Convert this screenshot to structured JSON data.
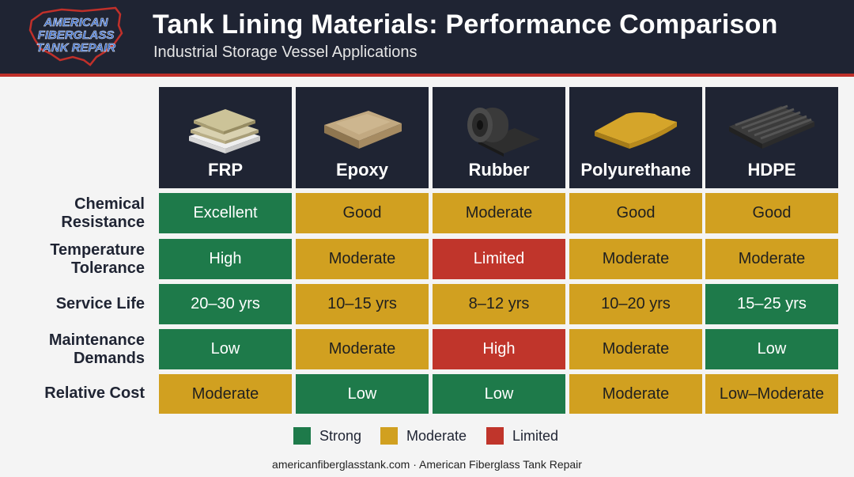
{
  "header": {
    "title": "Tank Lining Materials: Performance Comparison",
    "subtitle": "Industrial Storage Vessel Applications",
    "logo_lines": [
      "AMERICAN",
      "FIBERGLASS",
      "TANK REPAIR"
    ]
  },
  "columns": [
    {
      "name": "FRP",
      "icon": "frp-laminate-icon"
    },
    {
      "name": "Epoxy",
      "icon": "epoxy-sheet-icon"
    },
    {
      "name": "Rubber",
      "icon": "rubber-roll-icon"
    },
    {
      "name": "Polyurethane",
      "icon": "polyurethane-sheet-icon"
    },
    {
      "name": "HDPE",
      "icon": "hdpe-ribbed-sheet-icon"
    }
  ],
  "rows": [
    {
      "label": [
        "Chemical",
        "Resistance"
      ],
      "cells": [
        {
          "text": "Excellent",
          "rating": "strong"
        },
        {
          "text": "Good",
          "rating": "moderate"
        },
        {
          "text": "Moderate",
          "rating": "moderate"
        },
        {
          "text": "Good",
          "rating": "moderate"
        },
        {
          "text": "Good",
          "rating": "moderate"
        }
      ]
    },
    {
      "label": [
        "Temperature",
        "Tolerance"
      ],
      "cells": [
        {
          "text": "High",
          "rating": "strong"
        },
        {
          "text": "Moderate",
          "rating": "moderate"
        },
        {
          "text": "Limited",
          "rating": "limited"
        },
        {
          "text": "Moderate",
          "rating": "moderate"
        },
        {
          "text": "Moderate",
          "rating": "moderate"
        }
      ]
    },
    {
      "label": [
        "Service Life"
      ],
      "cells": [
        {
          "text": "20–30 yrs",
          "rating": "strong"
        },
        {
          "text": "10–15 yrs",
          "rating": "moderate"
        },
        {
          "text": "8–12 yrs",
          "rating": "moderate"
        },
        {
          "text": "10–20 yrs",
          "rating": "moderate"
        },
        {
          "text": "15–25 yrs",
          "rating": "strong"
        }
      ]
    },
    {
      "label": [
        "Maintenance",
        "Demands"
      ],
      "cells": [
        {
          "text": "Low",
          "rating": "strong"
        },
        {
          "text": "Moderate",
          "rating": "moderate"
        },
        {
          "text": "High",
          "rating": "limited"
        },
        {
          "text": "Moderate",
          "rating": "moderate"
        },
        {
          "text": "Low",
          "rating": "strong"
        }
      ]
    },
    {
      "label": [
        "Relative Cost"
      ],
      "cells": [
        {
          "text": "Moderate",
          "rating": "moderate"
        },
        {
          "text": "Low",
          "rating": "strong"
        },
        {
          "text": "Low",
          "rating": "strong"
        },
        {
          "text": "Moderate",
          "rating": "moderate"
        },
        {
          "text": "Low–Moderate",
          "rating": "moderate"
        }
      ]
    }
  ],
  "legend": [
    {
      "label": "Strong",
      "color": "#1e7a4a"
    },
    {
      "label": "Moderate",
      "color": "#d1a020"
    },
    {
      "label": "Limited",
      "color": "#c0352b"
    }
  ],
  "colors": {
    "header_bg": "#1f2433",
    "accent_red": "#c0302a",
    "strong": "#1e7a4a",
    "moderate": "#d1a020",
    "limited": "#c0352b"
  },
  "footer": "americanfiberglasstank.com · American Fiberglass Tank Repair"
}
